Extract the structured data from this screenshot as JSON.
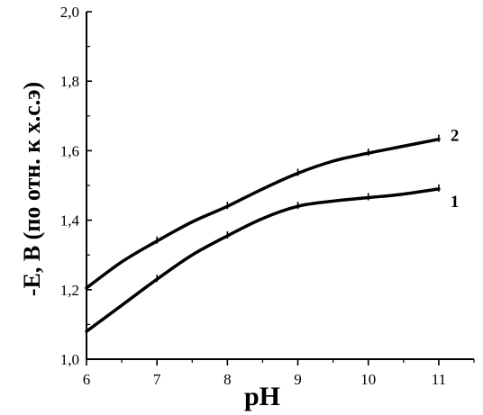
{
  "chart_data": {
    "type": "line",
    "title": "",
    "xlabel": "pH",
    "ylabel": "-E, В (по отн. к х.с.э)",
    "xlim": [
      6,
      11.5
    ],
    "ylim": [
      1.0,
      2.0
    ],
    "x_ticks": [
      "6",
      "7",
      "8",
      "9",
      "10",
      "11"
    ],
    "y_ticks": [
      "1,0",
      "1,2",
      "1,4",
      "1,6",
      "1,8",
      "2,0"
    ],
    "grid": false,
    "series": [
      {
        "name": "1",
        "x": [
          6.0,
          6.5,
          7.0,
          7.5,
          8.0,
          8.5,
          9.0,
          9.5,
          10.0,
          10.5,
          11.0
        ],
        "y": [
          1.08,
          1.155,
          1.23,
          1.3,
          1.355,
          1.405,
          1.44,
          1.455,
          1.465,
          1.475,
          1.49
        ]
      },
      {
        "name": "2",
        "x": [
          6.0,
          6.5,
          7.0,
          7.5,
          8.0,
          8.5,
          9.0,
          9.5,
          10.0,
          10.5,
          11.0
        ],
        "y": [
          1.205,
          1.28,
          1.34,
          1.395,
          1.44,
          1.49,
          1.535,
          1.57,
          1.593,
          1.613,
          1.633
        ]
      }
    ]
  }
}
